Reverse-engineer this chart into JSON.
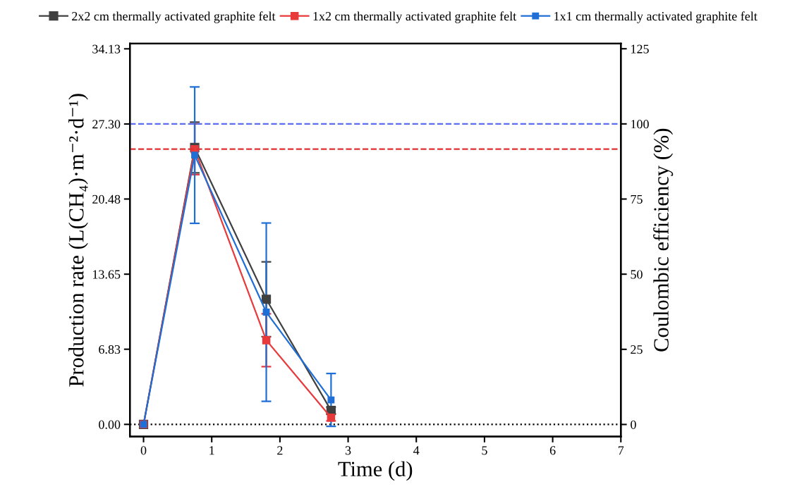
{
  "chart_data": {
    "type": "line",
    "xlabel": "Time (d)",
    "ylabel": "Production rate (L(CH₄)·m⁻²·d⁻¹)",
    "y2label": "Coulombic efficiency (%)",
    "x": [
      0,
      0.75,
      1.8,
      2.75
    ],
    "series": [
      {
        "name": "2x2 cm thermally activated graphite felt",
        "color": "#404040",
        "values": [
          0,
          25.16,
          11.37,
          1.26
        ],
        "errors": [
          null,
          2.3,
          3.4,
          0.3
        ]
      },
      {
        "name": "1x2 cm thermally activated graphite felt",
        "color": "#e8393b",
        "values": [
          0,
          25.0,
          7.65,
          0.62
        ],
        "errors": [
          null,
          2.3,
          2.4,
          0.3
        ]
      },
      {
        "name": "1x1 cm thermally activated graphite felt",
        "color": "#1f6fd6",
        "values": [
          0,
          24.47,
          10.2,
          2.22
        ],
        "errors": [
          null,
          6.2,
          8.1,
          2.4
        ]
      }
    ],
    "xlim": [
      -0.2,
      7
    ],
    "xticks": [
      0,
      1,
      2,
      3,
      4,
      5,
      6,
      7
    ],
    "ylim": [
      -1.1,
      34.6
    ],
    "yticks": [
      {
        "value": 0,
        "label": "0.00"
      },
      {
        "value": 6.83,
        "label": "6.83"
      },
      {
        "value": 13.65,
        "label": "13.65"
      },
      {
        "value": 20.48,
        "label": "20.48"
      },
      {
        "value": 27.3,
        "label": "27.30"
      },
      {
        "value": 34.13,
        "label": "34.13"
      }
    ],
    "y2lim": [
      -4.0,
      126.7
    ],
    "y2ticks": [
      0,
      25,
      50,
      75,
      100,
      125
    ],
    "ref_lines": [
      {
        "axis": "y2",
        "value": 100,
        "color": "#5b6ef0",
        "line_style": "dashed"
      },
      {
        "axis": "y2",
        "value": 91.6,
        "color": "#e03030",
        "line_style": "dashed"
      },
      {
        "axis": "y",
        "value": 0,
        "color": "#000000",
        "line_style": "dotted"
      }
    ],
    "marker": "square",
    "line_style": "solid",
    "legend": "top",
    "grid": false
  }
}
